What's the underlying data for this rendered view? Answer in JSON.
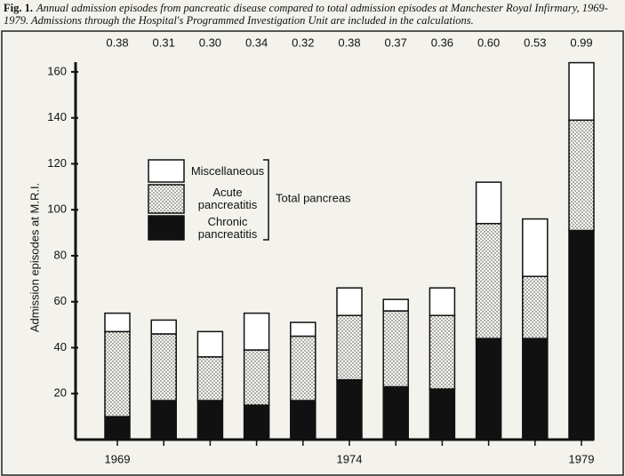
{
  "chart_data": {
    "type": "stacked-bar",
    "figure_label": "Fig. 1.",
    "title": "Annual admission episodes from pancreatic disease compared to total admission episodes at Manchester Royal Infirmary, 1969-1979. Admissions through the Hospital's Programmed Investigation Unit are included in the calculations.",
    "y_label": "Admission episodes at M.R.I.",
    "categories": [
      "1969",
      null,
      null,
      null,
      null,
      "1974",
      null,
      null,
      null,
      null,
      "1979"
    ],
    "annotations": [
      "0.38",
      "0.31",
      "0.30",
      "0.34",
      "0.32",
      "0.38",
      "0.37",
      "0.36",
      "0.60",
      "0.53",
      "0.99"
    ],
    "series": [
      {
        "name": "Chronic pancreatitis",
        "color": "#111111",
        "values": [
          10,
          17,
          17,
          15,
          17,
          26,
          23,
          22,
          44,
          44,
          91
        ]
      },
      {
        "name": "Acute pancreatitis",
        "color": "dotted",
        "values": [
          37,
          29,
          19,
          24,
          28,
          28,
          33,
          32,
          50,
          27,
          48
        ]
      },
      {
        "name": "Miscellaneous",
        "color": "#ffffff",
        "values": [
          8,
          6,
          11,
          16,
          6,
          12,
          5,
          12,
          18,
          25,
          25
        ]
      }
    ],
    "legend_group": "Total pancreas",
    "ylim": [
      0,
      165
    ],
    "yticks": [
      20,
      40,
      60,
      80,
      100,
      120,
      140,
      160
    ]
  }
}
